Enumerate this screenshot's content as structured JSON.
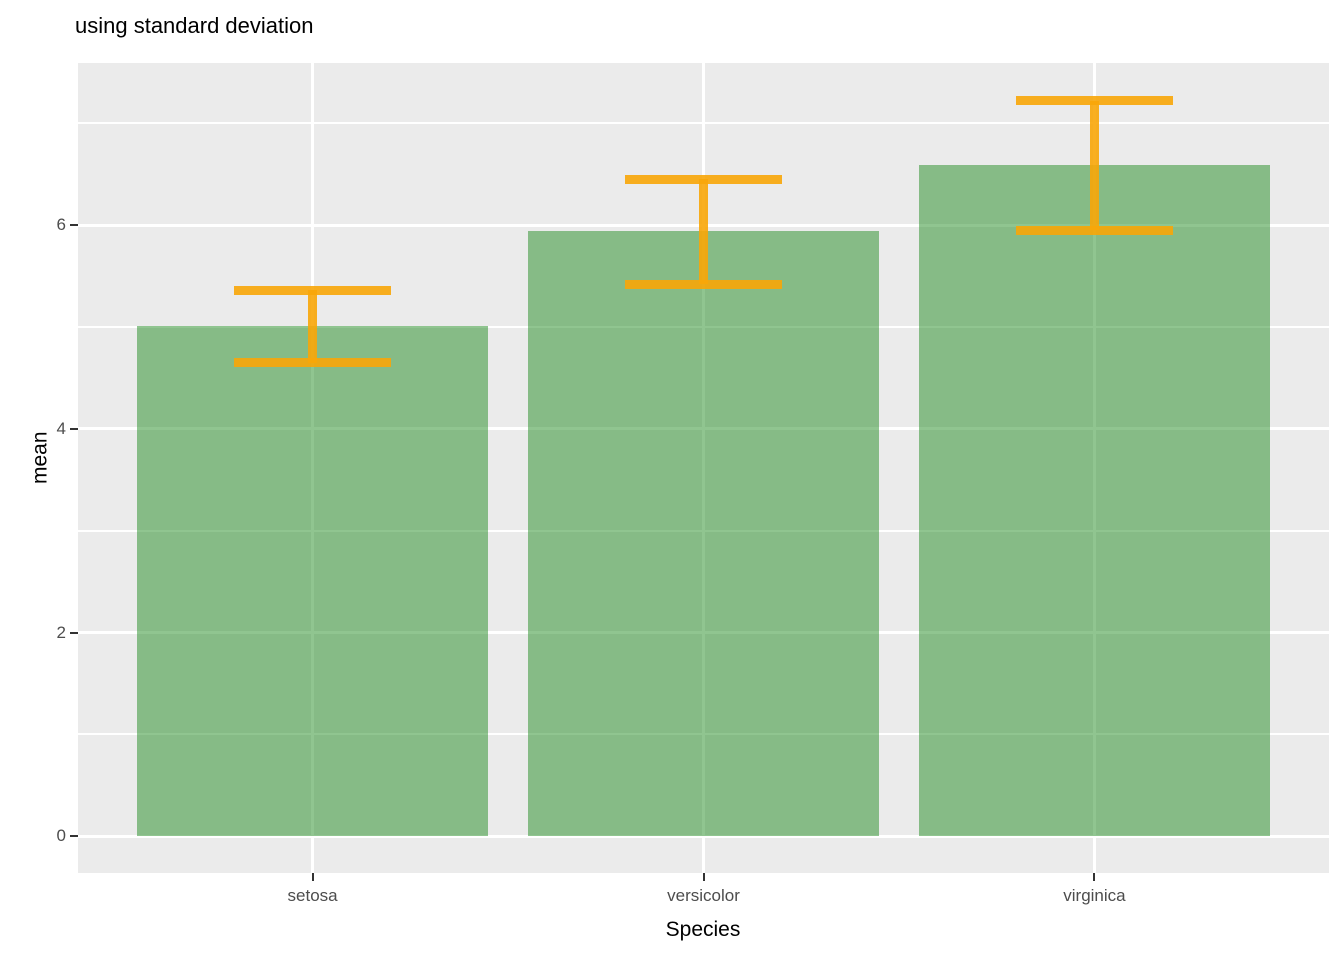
{
  "chart_data": {
    "type": "bar",
    "title": "using standard deviation",
    "xlabel": "Species",
    "ylabel": "mean",
    "categories": [
      "setosa",
      "versicolor",
      "virginica"
    ],
    "series": [
      {
        "name": "mean",
        "values": [
          5.01,
          5.94,
          6.59
        ]
      }
    ],
    "error_bars": {
      "kind": "standard deviation",
      "sd": [
        0.35,
        0.52,
        0.64
      ],
      "ymin": [
        4.65,
        5.42,
        5.95
      ],
      "ymax": [
        5.36,
        6.45,
        7.22
      ]
    },
    "yticks": [
      0,
      2,
      4,
      6
    ],
    "minor_gridlines": [
      1,
      3,
      5,
      7
    ],
    "ylim": [
      -0.36,
      7.59
    ],
    "grid": true,
    "legend_position": "none",
    "colors": {
      "bar_fill": "#228B22",
      "bar_alpha": 0.5,
      "errorbar": "#F8A608",
      "errorbar_alpha": 0.9,
      "panel_background": "#EBEBEB",
      "gridline": "#FFFFFF",
      "axis_text": "#4D4D4D",
      "title_text": "#000000"
    }
  }
}
